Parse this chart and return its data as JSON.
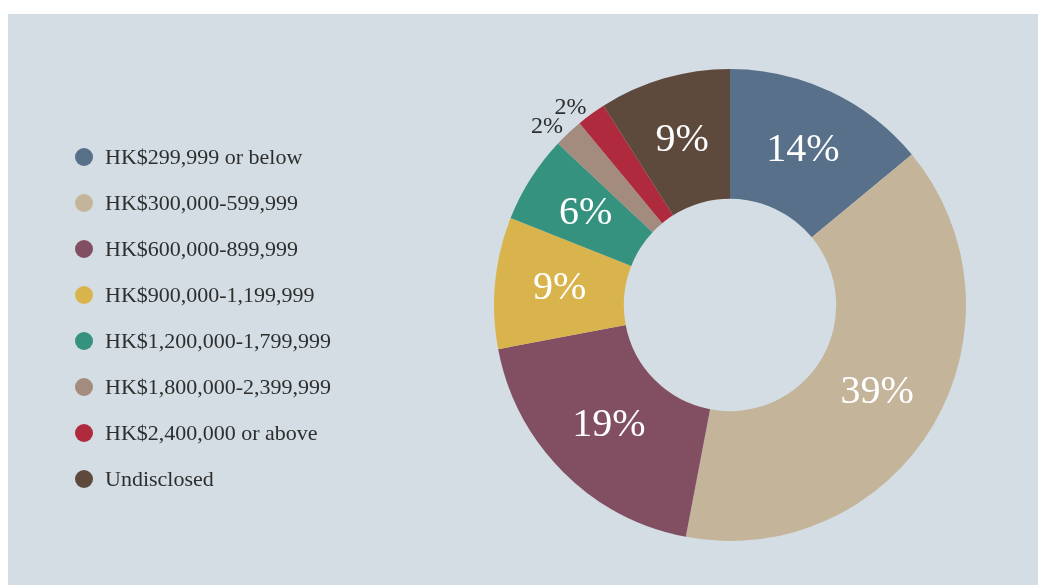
{
  "chart_data": {
    "type": "donut",
    "categories": [
      "HK$299,999 or below",
      "HK$300,000-599,999",
      "HK$600,000-899,999",
      "HK$900,000-1,199,999",
      "HK$1,200,000-1,799,999",
      "HK$1,800,000-2,399,999",
      "HK$2,400,000 or above",
      "Undisclosed"
    ],
    "values": [
      14,
      39,
      19,
      9,
      6,
      2,
      2,
      9
    ],
    "value_labels": [
      "14%",
      "39%",
      "19%",
      "9%",
      "6%",
      "2%",
      "2%",
      "9%"
    ],
    "colors": [
      "#587089",
      "#c4b49a",
      "#824f62",
      "#d9b44d",
      "#35927f",
      "#a38b7d",
      "#b02a3e",
      "#5e4a3d"
    ],
    "legend": "left"
  }
}
